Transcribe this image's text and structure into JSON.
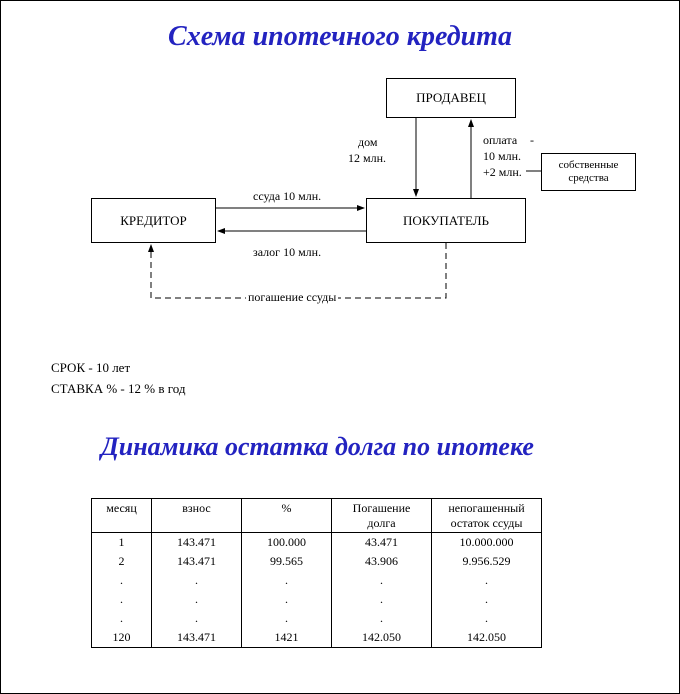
{
  "titles": {
    "scheme": "Схема ипотечного кредита",
    "dynamics": "Динамика остатка долга по ипотеке"
  },
  "diagram": {
    "nodes": {
      "seller": "ПРОДАВЕЦ",
      "creditor": "КРЕДИТОР",
      "buyer": "ПОКУПАТЕЛЬ",
      "own_funds_l1": "собственные",
      "own_funds_l2": "средства"
    },
    "edges": {
      "house_l1": "дом",
      "house_l2": "12 млн.",
      "loan": "ссуда 10 млн.",
      "pledge": "залог 10 млн.",
      "repay": "погашение ссуды",
      "payment_l1": "оплата",
      "payment_l2": "10 млн.",
      "payment_l3": "+2 млн.",
      "dash": "-"
    },
    "colors": {
      "line": "#000000",
      "bg": "#ffffff",
      "title": "#2323c0"
    }
  },
  "terms": {
    "term": "СРОК - 10 лет",
    "rate": "СТАВКА % - 12 % в год"
  },
  "table": {
    "headers": {
      "month": "месяц",
      "payment": "взнос",
      "percent": "%",
      "principal_l1": "Погашение",
      "principal_l2": "долга",
      "remain_l1": "непогашенный",
      "remain_l2": "остаток ссуды"
    },
    "rows": [
      {
        "m": "1",
        "p": "143.471",
        "i": "100.000",
        "pr": "43.471",
        "r": "10.000.000"
      },
      {
        "m": "2",
        "p": "143.471",
        "i": "99.565",
        "pr": "43.906",
        "r": "9.956.529"
      },
      {
        "m": ".",
        "p": ".",
        "i": ".",
        "pr": ".",
        "r": "."
      },
      {
        "m": ".",
        "p": ".",
        "i": ".",
        "pr": ".",
        "r": "."
      },
      {
        "m": ".",
        "p": ".",
        "i": ".",
        "pr": ".",
        "r": "."
      },
      {
        "m": "120",
        "p": "143.471",
        "i": "1421",
        "pr": "142.050",
        "r": "142.050"
      }
    ]
  }
}
